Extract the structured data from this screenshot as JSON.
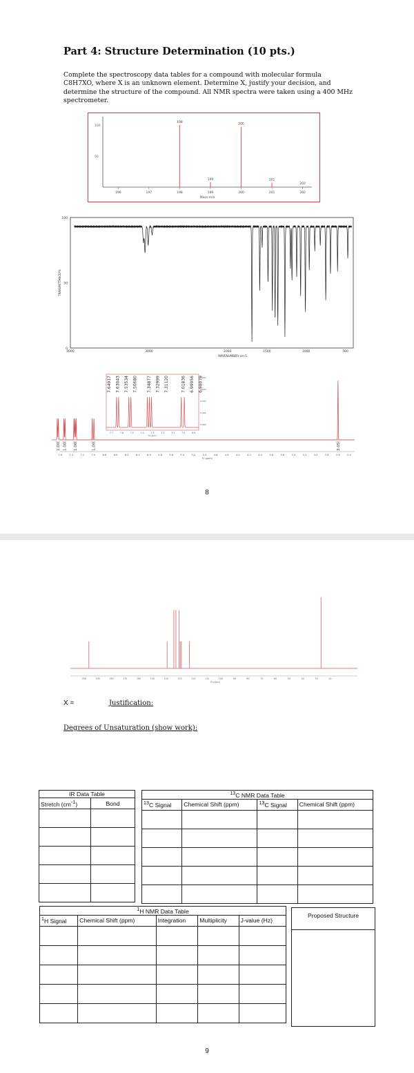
{
  "page8": {
    "title": "Part 4: Structure Determination (10 pts.)",
    "intro": "Complete the spectroscopy data tables for a compound with molecular formula C8H7XO, where X is an unknown element. Determine X, justify your decision, and determine the structure of the compound. All NMR spectra were taken using a 400 MHz spectrometer.",
    "page_number": "8"
  },
  "chart_data": [
    {
      "type": "bar",
      "title": "",
      "xlabel": "Mass m/e",
      "ylabel": "",
      "xlim": [
        195.5,
        202.3
      ],
      "ylim": [
        0,
        100
      ],
      "x_ticks": [
        "196",
        "197",
        "198",
        "199",
        "200",
        "201",
        "202"
      ],
      "y_ticks": [
        "100",
        "50"
      ],
      "peaks": [
        {
          "x": 198,
          "y": 100,
          "label": "198"
        },
        {
          "x": 199,
          "y": 8,
          "label": "199"
        },
        {
          "x": 200,
          "y": 97,
          "label": "200"
        },
        {
          "x": 201,
          "y": 7,
          "label": "201"
        },
        {
          "x": 202,
          "y": 1,
          "label": "202"
        }
      ]
    },
    {
      "type": "line",
      "title": "",
      "xlabel": "WAVENUMBER/-cm-1",
      "ylabel": "TRANSMITTANCE/%",
      "xlim": [
        4000,
        400
      ],
      "ylim": [
        0,
        100
      ],
      "x_ticks": [
        "4000",
        "3000",
        "2000",
        "1500",
        "1000",
        "500"
      ],
      "y_ticks": [
        "100",
        "50",
        "0"
      ],
      "bands": [
        {
          "x": 3070,
          "y": 82
        },
        {
          "x": 3050,
          "y": 74
        },
        {
          "x": 3010,
          "y": 80
        },
        {
          "x": 2960,
          "y": 88
        },
        {
          "x": 1690,
          "y": 5
        },
        {
          "x": 1590,
          "y": 45
        },
        {
          "x": 1560,
          "y": 78
        },
        {
          "x": 1485,
          "y": 50
        },
        {
          "x": 1430,
          "y": 30
        },
        {
          "x": 1395,
          "y": 22
        },
        {
          "x": 1360,
          "y": 18
        },
        {
          "x": 1270,
          "y": 10
        },
        {
          "x": 1200,
          "y": 62
        },
        {
          "x": 1180,
          "y": 52
        },
        {
          "x": 1120,
          "y": 55
        },
        {
          "x": 1070,
          "y": 40
        },
        {
          "x": 1010,
          "y": 28
        },
        {
          "x": 960,
          "y": 60
        },
        {
          "x": 890,
          "y": 75
        },
        {
          "x": 820,
          "y": 80
        },
        {
          "x": 750,
          "y": 38
        },
        {
          "x": 690,
          "y": 58
        },
        {
          "x": 600,
          "y": 60
        },
        {
          "x": 470,
          "y": 70
        }
      ]
    },
    {
      "type": "line",
      "title": "",
      "xlabel": "f1 (ppm)",
      "ylabel": "",
      "xlim": [
        7.6,
        2.3
      ],
      "x_ticks": [
        "7.6",
        "7.4",
        "7.2",
        "7.0",
        "6.8",
        "6.6",
        "6.4",
        "6.2",
        "6.0",
        "5.8",
        "5.6",
        "5.4",
        "5.2",
        "5.0",
        "4.8",
        "4.6",
        "4.4",
        "4.2",
        "4.0",
        "3.8",
        "3.6",
        "3.4",
        "3.2",
        "3.0",
        "2.8",
        "2.6",
        "2.4"
      ],
      "peaks": [
        {
          "x": 7.65,
          "height": 0.36
        },
        {
          "x": 7.63,
          "height": 0.36
        },
        {
          "x": 7.53,
          "height": 0.36
        },
        {
          "x": 7.51,
          "height": 0.36
        },
        {
          "x": 7.35,
          "height": 0.36
        },
        {
          "x": 7.33,
          "height": 0.36
        },
        {
          "x": 7.31,
          "height": 0.36
        },
        {
          "x": 7.02,
          "height": 0.36
        },
        {
          "x": 6.99,
          "height": 0.36
        },
        {
          "x": 2.6,
          "height": 1.0
        }
      ],
      "integrals": [
        "1.00",
        "1.00",
        "1.00",
        "1.00",
        "3.05"
      ],
      "peak_labels": [
        "7.64917",
        "7.63043",
        "7.53534",
        "7.50680",
        "7.34877",
        "7.32999",
        "7.31120",
        "7.01836",
        "6.99956",
        "6.98079"
      ],
      "inset": {
        "xlabel": "f1 (ppm)",
        "x_ticks": [
          "7.7",
          "7.6",
          "7.5",
          "7.4",
          "7.3",
          "7.2",
          "7.1",
          "7.0",
          "6.9"
        ],
        "y_ticks": [
          "0.004",
          "0.003",
          "0.002",
          "0.001",
          "0.000"
        ]
      }
    },
    {
      "type": "line",
      "title": "",
      "xlabel": "f1 (ppm)",
      "ylabel": "",
      "xlim": [
        210,
        0
      ],
      "x_ticks": [
        "200",
        "190",
        "180",
        "170",
        "160",
        "150",
        "140",
        "130",
        "120",
        "110",
        "100",
        "90",
        "80",
        "70",
        "60",
        "50",
        "40",
        "30",
        "20"
      ],
      "peaks": [
        {
          "x": 196.5,
          "height": 0.38
        },
        {
          "x": 139.2,
          "height": 0.38
        },
        {
          "x": 134.3,
          "height": 0.82
        },
        {
          "x": 132.8,
          "height": 0.82
        },
        {
          "x": 130.5,
          "height": 0.82
        },
        {
          "x": 129.6,
          "height": 0.38
        },
        {
          "x": 128.8,
          "height": 0.38
        },
        {
          "x": 122.9,
          "height": 0.38
        },
        {
          "x": 26.6,
          "height": 1.0
        }
      ]
    }
  ],
  "page9": {
    "x_label": "X =",
    "justification": "Justification:",
    "dou": "Degrees of Unsaturation (show work):",
    "ir_table": {
      "caption": "IR Data Table",
      "headers": [
        "Stretch (cm-1)",
        "Bond"
      ],
      "rows": 5
    },
    "c13_table": {
      "caption": "13C NMR Data Table",
      "headers": [
        "13C Signal",
        "Chemical Shift (ppm)",
        "13C Signal",
        "Chemical Shift (ppm)"
      ],
      "rows": 5
    },
    "h1_table": {
      "caption": "1H NMR Data Table",
      "headers": [
        "1H Signal",
        "Chemical Shift (ppm)",
        "Integration",
        "Multiplicity",
        "J-value (Hz)"
      ],
      "rows": 5
    },
    "proposed": "Proposed Structure",
    "page_number": "9"
  }
}
